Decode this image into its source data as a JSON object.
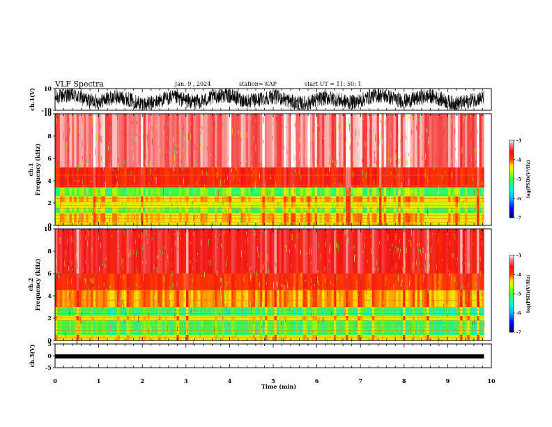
{
  "header": {
    "title": "VLF Spectra",
    "date": "Jan. 9 , 2024",
    "station": "station= KAP",
    "start": "start UT =  11: 50: 1"
  },
  "chart_data": [
    {
      "type": "line",
      "panel": "ch1-waveform",
      "ylabel": "ch.1(V)",
      "ylim": [
        -10,
        10
      ],
      "yticks": [
        "10",
        "-10"
      ],
      "x_range": [
        0,
        9.83
      ]
    },
    {
      "type": "heatmap",
      "panel": "ch1-spectrogram",
      "ylabel_line1": "ch.1",
      "ylabel_line2": "Frequency (kHz)",
      "ylim": [
        0,
        10
      ],
      "yticks": [
        "0",
        "2",
        "4",
        "6",
        "8",
        "10"
      ],
      "bands": [
        {
          "from": 0.0,
          "to": 0.3,
          "log_psd": -4.4
        },
        {
          "from": 0.3,
          "to": 1.1,
          "log_psd": -4.3
        },
        {
          "from": 1.1,
          "to": 1.6,
          "log_psd": -4.9
        },
        {
          "from": 1.6,
          "to": 2.1,
          "log_psd": -4.5
        },
        {
          "from": 2.1,
          "to": 2.6,
          "log_psd": -4.3
        },
        {
          "from": 2.6,
          "to": 3.4,
          "log_psd": -5.0
        },
        {
          "from": 3.4,
          "to": 5.2,
          "log_psd": -3.8
        },
        {
          "from": 5.2,
          "to": 10.0,
          "log_psd": -3.3
        }
      ],
      "colorbar": {
        "label": "log(PSD)(V²/Hz)",
        "range": [
          -7,
          -3
        ],
        "ticks": [
          "-3",
          "-4",
          "-5",
          "-6",
          "-7"
        ]
      }
    },
    {
      "type": "heatmap",
      "panel": "ch2-spectrogram",
      "ylabel_line1": "ch.2",
      "ylabel_line2": "Frequency (kHz)",
      "ylim": [
        0,
        10
      ],
      "yticks": [
        "0",
        "2",
        "4",
        "6",
        "8",
        "10"
      ],
      "bands": [
        {
          "from": 0.0,
          "to": 0.5,
          "log_psd": -4.4
        },
        {
          "from": 0.5,
          "to": 1.8,
          "log_psd": -5.1
        },
        {
          "from": 1.8,
          "to": 2.2,
          "log_psd": -4.4
        },
        {
          "from": 2.2,
          "to": 3.0,
          "log_psd": -5.2
        },
        {
          "from": 3.0,
          "to": 4.5,
          "log_psd": -4.2
        },
        {
          "from": 4.5,
          "to": 6.0,
          "log_psd": -3.9
        },
        {
          "from": 6.0,
          "to": 10.0,
          "log_psd": -3.6
        }
      ],
      "colorbar": {
        "label": "log(PSD)(V²/Hz)",
        "range": [
          -7,
          -3
        ],
        "ticks": [
          "-3",
          "-4",
          "-5",
          "-6",
          "-7"
        ]
      }
    },
    {
      "type": "line",
      "panel": "ch3-waveform",
      "ylabel": "ch.3(V)",
      "ylim": [
        -5,
        5
      ],
      "yticks": [
        "5",
        "0",
        "-5"
      ],
      "level": -0.2,
      "x_range": [
        0,
        9.83
      ]
    }
  ],
  "xaxis": {
    "label": "Time (min)",
    "range": [
      0,
      10
    ],
    "ticks": [
      "0",
      "1",
      "2",
      "3",
      "4",
      "5",
      "6",
      "7",
      "8",
      "9",
      "10"
    ]
  }
}
